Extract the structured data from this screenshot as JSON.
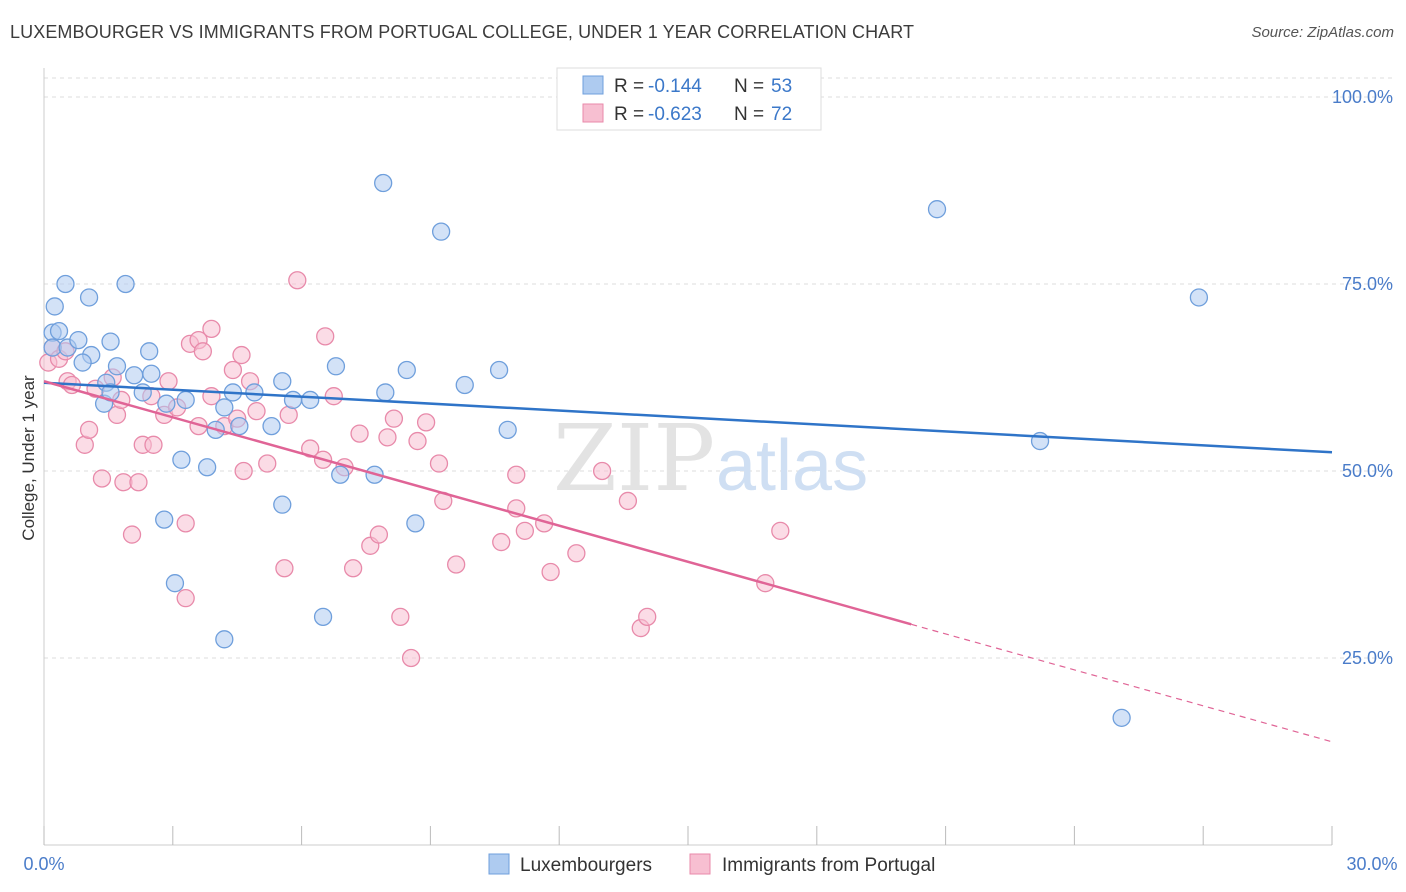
{
  "title": "LUXEMBOURGER VS IMMIGRANTS FROM PORTUGAL COLLEGE, UNDER 1 YEAR CORRELATION CHART",
  "source": "Source: ZipAtlas.com",
  "watermark": {
    "zip": "ZIP",
    "atlas": "atlas"
  },
  "colors": {
    "blue_fill": "#aecbf0",
    "blue_stroke": "#6f9fdc",
    "blue_line": "#2f74c8",
    "pink_fill": "#f7bfd1",
    "pink_stroke": "#e88aaa",
    "pink_line": "#e06496",
    "axis_text": "#4a7cc9",
    "grid": "#dddddd"
  },
  "legend": {
    "rows": [
      {
        "r_label": "R =",
        "r_value": "-0.144",
        "n_label": "N =",
        "n_value": "53"
      },
      {
        "r_label": "R =",
        "r_value": "-0.623",
        "n_label": "N =",
        "n_value": "72"
      }
    ]
  },
  "bottom_legend": [
    "Luxembourgers",
    "Immigrants from Portugal"
  ],
  "chart_data": {
    "type": "scatter",
    "ylabel": "College, Under 1 year",
    "xlabel": "",
    "xlim": [
      0,
      30
    ],
    "ylim": [
      0,
      105
    ],
    "x_tick_labels": [
      "0.0%",
      "30.0%"
    ],
    "y_ticks": [
      25,
      50,
      75,
      100
    ],
    "y_tick_labels": [
      "25.0%",
      "50.0%",
      "75.0%",
      "100.0%"
    ],
    "grid": true,
    "series": [
      {
        "name": "Luxembourgers",
        "color": "#aecbf0",
        "trend": {
          "x": [
            0,
            30
          ],
          "y": [
            61.8,
            52.5
          ]
        },
        "points": [
          [
            0.2,
            68.5
          ],
          [
            0.2,
            66.5
          ],
          [
            0.25,
            72
          ],
          [
            0.35,
            68.7
          ],
          [
            0.5,
            75
          ],
          [
            0.55,
            66.5
          ],
          [
            0.8,
            67.5
          ],
          [
            1.05,
            73.2
          ],
          [
            1.1,
            65.5
          ],
          [
            0.9,
            64.5
          ],
          [
            1.55,
            67.3
          ],
          [
            1.7,
            64
          ],
          [
            1.9,
            75
          ],
          [
            1.45,
            61.8
          ],
          [
            1.4,
            59
          ],
          [
            1.55,
            60.5
          ],
          [
            2.1,
            62.8
          ],
          [
            2.3,
            60.5
          ],
          [
            2.45,
            66
          ],
          [
            2.5,
            63
          ],
          [
            2.85,
            59
          ],
          [
            3.3,
            59.5
          ],
          [
            3.2,
            51.5
          ],
          [
            2.8,
            43.5
          ],
          [
            3.05,
            35
          ],
          [
            3.8,
            50.5
          ],
          [
            4.0,
            55.5
          ],
          [
            4.2,
            58.5
          ],
          [
            4.4,
            60.5
          ],
          [
            4.55,
            56
          ],
          [
            4.9,
            60.5
          ],
          [
            5.3,
            56
          ],
          [
            5.55,
            62
          ],
          [
            5.55,
            45.5
          ],
          [
            4.2,
            27.5
          ],
          [
            5.8,
            59.5
          ],
          [
            6.2,
            59.5
          ],
          [
            6.5,
            30.5
          ],
          [
            6.8,
            64
          ],
          [
            6.9,
            49.5
          ],
          [
            7.7,
            49.5
          ],
          [
            7.9,
            88.5
          ],
          [
            7.95,
            60.5
          ],
          [
            8.45,
            63.5
          ],
          [
            8.65,
            43
          ],
          [
            9.25,
            82
          ],
          [
            9.8,
            61.5
          ],
          [
            10.6,
            63.5
          ],
          [
            10.8,
            55.5
          ],
          [
            20.8,
            85
          ],
          [
            23.2,
            54
          ],
          [
            26.9,
            73.2
          ],
          [
            25.1,
            17
          ]
        ]
      },
      {
        "name": "Immigrants from Portugal",
        "color": "#f7bfd1",
        "trend": {
          "x": [
            0,
            20.2
          ],
          "y": [
            62.0,
            29.5
          ]
        },
        "trend_dashed": {
          "x": [
            20.2,
            30
          ],
          "y": [
            29.5,
            13.8
          ]
        },
        "points": [
          [
            0.1,
            64.5
          ],
          [
            0.2,
            66.5
          ],
          [
            0.35,
            65
          ],
          [
            0.5,
            66
          ],
          [
            0.55,
            62
          ],
          [
            0.65,
            61.5
          ],
          [
            0.95,
            53.5
          ],
          [
            1.05,
            55.5
          ],
          [
            1.2,
            61
          ],
          [
            1.35,
            49
          ],
          [
            1.6,
            62.5
          ],
          [
            1.7,
            57.5
          ],
          [
            1.8,
            59.5
          ],
          [
            1.85,
            48.5
          ],
          [
            2.05,
            41.5
          ],
          [
            2.2,
            48.5
          ],
          [
            2.3,
            53.5
          ],
          [
            2.5,
            60
          ],
          [
            2.55,
            53.5
          ],
          [
            2.8,
            57.5
          ],
          [
            2.9,
            62
          ],
          [
            3.1,
            58.5
          ],
          [
            3.3,
            43
          ],
          [
            3.3,
            33
          ],
          [
            3.4,
            67
          ],
          [
            3.6,
            67.5
          ],
          [
            3.6,
            56
          ],
          [
            3.7,
            66
          ],
          [
            3.9,
            60
          ],
          [
            3.9,
            69
          ],
          [
            4.2,
            56
          ],
          [
            4.4,
            63.5
          ],
          [
            4.5,
            57
          ],
          [
            4.6,
            65.5
          ],
          [
            4.65,
            50
          ],
          [
            4.8,
            62
          ],
          [
            4.95,
            58
          ],
          [
            5.2,
            51
          ],
          [
            5.6,
            37
          ],
          [
            5.7,
            57.5
          ],
          [
            5.9,
            75.5
          ],
          [
            6.2,
            53
          ],
          [
            6.5,
            51.5
          ],
          [
            6.55,
            68
          ],
          [
            6.75,
            60
          ],
          [
            7.0,
            50.5
          ],
          [
            7.2,
            37
          ],
          [
            7.35,
            55
          ],
          [
            7.6,
            40
          ],
          [
            7.8,
            41.5
          ],
          [
            8.0,
            54.5
          ],
          [
            8.15,
            57
          ],
          [
            8.3,
            30.5
          ],
          [
            8.55,
            25
          ],
          [
            8.7,
            54
          ],
          [
            8.9,
            56.5
          ],
          [
            9.2,
            51
          ],
          [
            9.3,
            46
          ],
          [
            9.6,
            37.5
          ],
          [
            10.65,
            40.5
          ],
          [
            11.0,
            45
          ],
          [
            11.0,
            49.5
          ],
          [
            11.2,
            42
          ],
          [
            11.65,
            43
          ],
          [
            11.8,
            36.5
          ],
          [
            12.4,
            39
          ],
          [
            13.0,
            50
          ],
          [
            13.6,
            46
          ],
          [
            13.9,
            29
          ],
          [
            14.05,
            30.5
          ],
          [
            16.8,
            35
          ],
          [
            17.15,
            42
          ]
        ]
      }
    ]
  }
}
